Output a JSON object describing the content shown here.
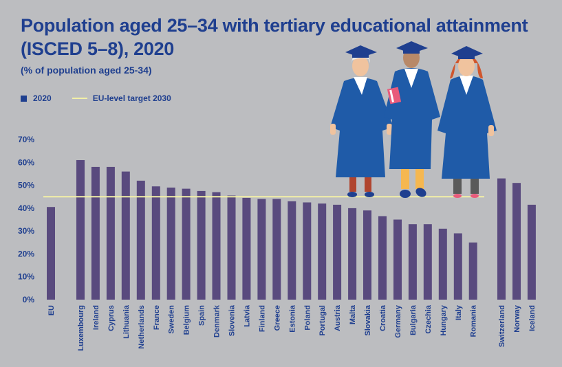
{
  "chart_data": {
    "type": "bar",
    "title": "Population aged 25–34 with tertiary educational attainment (ISCED 5–8), 2020",
    "subtitle": "(% of population aged 25-34)",
    "legend": [
      {
        "label": "2020",
        "kind": "bar",
        "color": "#1f3f8f"
      },
      {
        "label": "EU-level target 2030",
        "kind": "line",
        "color": "#f3f0a6"
      }
    ],
    "legend_placement": "top-left",
    "bar_color": "#594a7e",
    "ylim": [
      0,
      70
    ],
    "yticks": [
      "0%",
      "10%",
      "20%",
      "30%",
      "40%",
      "50%",
      "60%",
      "70%"
    ],
    "grid": false,
    "target": 45,
    "groups": [
      {
        "categories": [
          "EU"
        ],
        "values": [
          40.5
        ]
      },
      {
        "categories": [
          "Luxembourg",
          "Ireland",
          "Cyprus",
          "Lithuania",
          "Netherlands",
          "France",
          "Sweden",
          "Belgium",
          "Spain",
          "Denmark",
          "Slovenia",
          "Latvia",
          "Finland",
          "Greece",
          "Estonia",
          "Poland",
          "Portugal",
          "Austria",
          "Malta",
          "Slovakia",
          "Croatia",
          "Germany",
          "Bulgaria",
          "Czechia",
          "Hungary",
          "Italy",
          "Romania"
        ],
        "values": [
          61,
          58,
          58,
          56,
          52,
          49.5,
          49,
          48.5,
          47.5,
          47,
          45.5,
          44.5,
          44,
          44,
          43,
          42.5,
          42,
          41.5,
          40,
          39,
          36.5,
          35,
          33,
          33,
          31,
          29,
          25
        ]
      },
      {
        "categories": [
          "Switzerland",
          "Norway",
          "Iceland"
        ],
        "values": [
          53,
          51,
          41.5
        ]
      }
    ]
  }
}
